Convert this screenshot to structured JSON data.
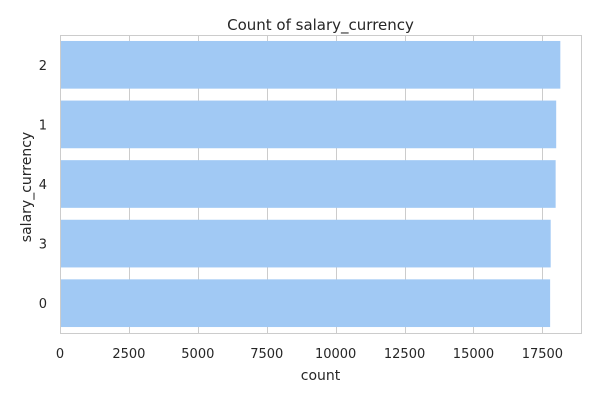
{
  "chart_data": {
    "type": "bar",
    "orientation": "horizontal",
    "title": "Count of salary_currency",
    "xlabel": "count",
    "ylabel": "salary_currency",
    "categories": [
      "2",
      "1",
      "4",
      "3",
      "0"
    ],
    "values": [
      18150,
      18000,
      17980,
      17800,
      17780
    ],
    "xlim": [
      0,
      18900
    ],
    "xticks": [
      0,
      2500,
      5000,
      7500,
      10000,
      12500,
      15000,
      17500
    ],
    "grid": true,
    "legend": "none",
    "colors": {
      "bar": "#a1c9f4",
      "grid": "#cccccc",
      "spine": "#cccccc",
      "text": "#262626"
    }
  }
}
